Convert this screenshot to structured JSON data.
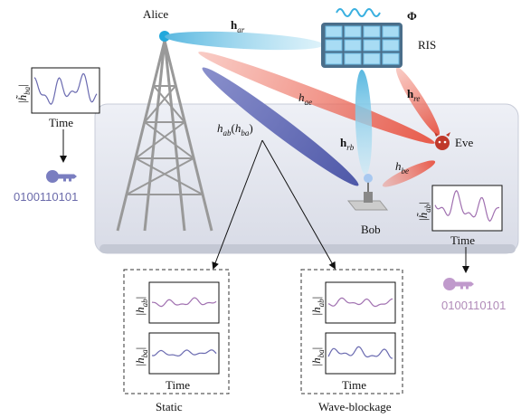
{
  "nodes": {
    "alice": "Alice",
    "ris": "RIS",
    "phi": "Φ",
    "eve": "Eve",
    "bob": "Bob"
  },
  "channels": [
    {
      "main": "h",
      "sub": "ar"
    },
    {
      "main": "h",
      "sub": "ae"
    },
    {
      "main": "h",
      "sub": "re"
    },
    {
      "main": "h",
      "sub": "rb"
    },
    {
      "main": "h",
      "sub": "be"
    }
  ],
  "direct": {
    "main": "h",
    "sub": "ab",
    "open": "(",
    "main2": "h",
    "sub2": "ba",
    "close": ")"
  },
  "plots": [
    {
      "ylabel": {
        "pre": "|",
        "main": "h̃",
        "sub": "ba",
        "post": "|"
      },
      "xlabel": "Time",
      "key": "0100110101"
    },
    {
      "ylabel": {
        "pre": "|",
        "main": "h̃",
        "sub": "ab",
        "post": "|"
      },
      "xlabel": "Time",
      "key": "0100110101"
    }
  ],
  "panels": [
    {
      "caption": "Static",
      "top": {
        "pre": "|",
        "main": "h",
        "sub": "ab",
        "post": "|"
      },
      "bottom": {
        "pre": "|",
        "main": "h",
        "sub": "ba",
        "post": "|"
      },
      "xlabel": "Time"
    },
    {
      "caption": "Wave-blockage",
      "top": {
        "pre": "|",
        "main": "h",
        "sub": "ab",
        "post": "|"
      },
      "bottom": {
        "pre": "|",
        "main": "h",
        "sub": "ba",
        "post": "|"
      },
      "xlabel": "Time"
    }
  ]
}
